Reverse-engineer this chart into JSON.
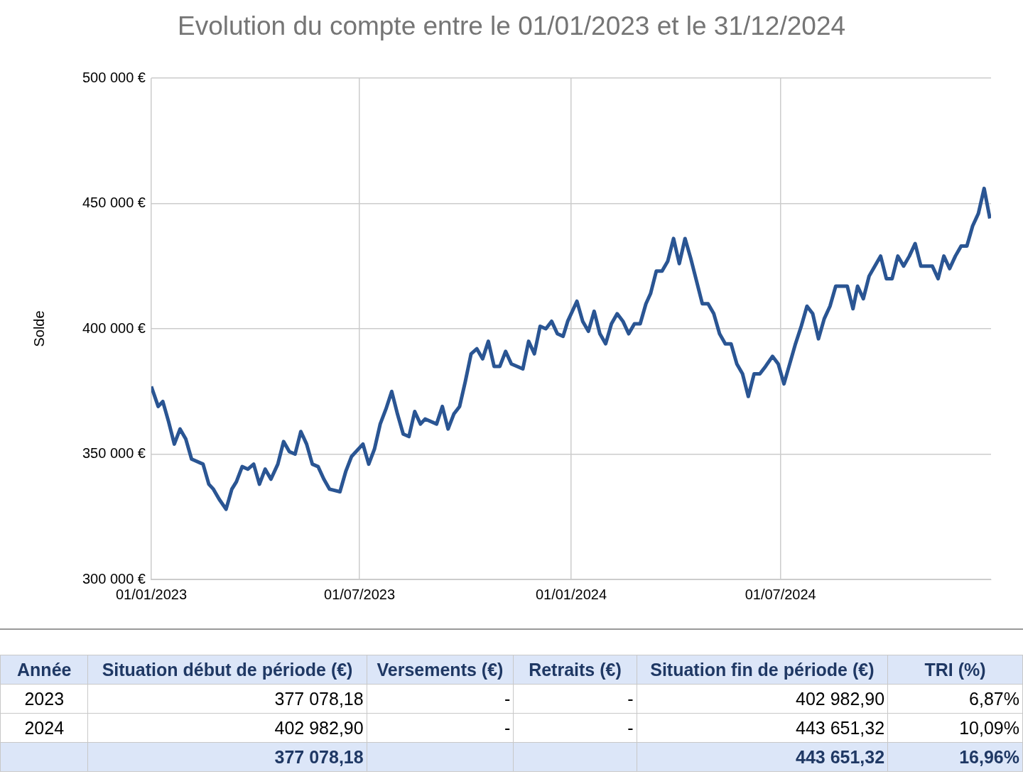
{
  "chart_data": {
    "type": "line",
    "title": "Evolution du compte entre le 01/01/2023 et le 31/12/2024",
    "ylabel": "Solde",
    "x": [
      "2023-01-01",
      "2023-01-07",
      "2023-01-11",
      "2023-01-16",
      "2023-01-21",
      "2023-01-26",
      "2023-01-31",
      "2023-02-05",
      "2023-02-15",
      "2023-02-20",
      "2023-02-24",
      "2023-03-01",
      "2023-03-07",
      "2023-03-12",
      "2023-03-16",
      "2023-03-21",
      "2023-03-26",
      "2023-03-31",
      "2023-04-05",
      "2023-04-10",
      "2023-04-15",
      "2023-04-21",
      "2023-04-26",
      "2023-05-01",
      "2023-05-06",
      "2023-05-11",
      "2023-05-16",
      "2023-05-21",
      "2023-05-26",
      "2023-05-31",
      "2023-06-05",
      "2023-06-14",
      "2023-06-19",
      "2023-06-24",
      "2023-07-04",
      "2023-07-09",
      "2023-07-14",
      "2023-07-19",
      "2023-07-24",
      "2023-07-29",
      "2023-08-03",
      "2023-08-08",
      "2023-08-13",
      "2023-08-18",
      "2023-08-23",
      "2023-08-27",
      "2023-09-06",
      "2023-09-11",
      "2023-09-16",
      "2023-09-21",
      "2023-09-26",
      "2023-10-01",
      "2023-10-06",
      "2023-10-11",
      "2023-10-16",
      "2023-10-21",
      "2023-10-26",
      "2023-10-31",
      "2023-11-05",
      "2023-11-10",
      "2023-11-20",
      "2023-11-25",
      "2023-11-30",
      "2023-12-05",
      "2023-12-10",
      "2023-12-15",
      "2023-12-20",
      "2023-12-25",
      "2023-12-29",
      "2024-01-06",
      "2024-01-11",
      "2024-01-16",
      "2024-01-21",
      "2024-01-26",
      "2024-01-31",
      "2024-02-05",
      "2024-02-10",
      "2024-02-15",
      "2024-02-20",
      "2024-02-25",
      "2024-03-01",
      "2024-03-06",
      "2024-03-10",
      "2024-03-15",
      "2024-03-20",
      "2024-03-25",
      "2024-03-30",
      "2024-04-04",
      "2024-04-09",
      "2024-04-14",
      "2024-04-19",
      "2024-04-24",
      "2024-04-29",
      "2024-05-04",
      "2024-05-09",
      "2024-05-14",
      "2024-05-19",
      "2024-05-24",
      "2024-05-29",
      "2024-06-03",
      "2024-06-08",
      "2024-06-13",
      "2024-06-18",
      "2024-06-24",
      "2024-06-29",
      "2024-07-04",
      "2024-07-09",
      "2024-07-14",
      "2024-07-19",
      "2024-07-24",
      "2024-07-29",
      "2024-08-03",
      "2024-08-08",
      "2024-08-13",
      "2024-08-18",
      "2024-08-23",
      "2024-08-28",
      "2024-09-02",
      "2024-09-06",
      "2024-09-11",
      "2024-09-16",
      "2024-09-21",
      "2024-09-26",
      "2024-10-01",
      "2024-10-06",
      "2024-10-11",
      "2024-10-16",
      "2024-10-21",
      "2024-10-26",
      "2024-10-31",
      "2024-11-05",
      "2024-11-10",
      "2024-11-15",
      "2024-11-20",
      "2024-11-25",
      "2024-11-30",
      "2024-12-05",
      "2024-12-10",
      "2024-12-15",
      "2024-12-20",
      "2024-12-25",
      "2024-12-30"
    ],
    "series": [
      {
        "color": "#2a5593",
        "values": [
          377000,
          369000,
          371000,
          363000,
          354000,
          360000,
          356000,
          348000,
          346000,
          338000,
          336000,
          332000,
          328000,
          336000,
          339000,
          345000,
          344000,
          346000,
          338000,
          344000,
          340000,
          346000,
          355000,
          351000,
          350000,
          359000,
          354000,
          346000,
          345000,
          340000,
          336000,
          335000,
          343000,
          349000,
          354000,
          346000,
          352000,
          362000,
          368000,
          375000,
          366000,
          358000,
          357000,
          367000,
          362000,
          364000,
          362000,
          369000,
          360000,
          366000,
          369000,
          379000,
          390000,
          392000,
          388000,
          395000,
          385000,
          385000,
          391000,
          386000,
          384000,
          395000,
          390000,
          401000,
          400000,
          403000,
          398000,
          397000,
          403000,
          411000,
          403000,
          399000,
          407000,
          398000,
          394000,
          402000,
          406000,
          403000,
          398000,
          402000,
          402000,
          410000,
          414000,
          423000,
          423000,
          427000,
          436000,
          426000,
          436000,
          428000,
          419000,
          410000,
          410000,
          406000,
          398000,
          394000,
          394000,
          386000,
          382000,
          373000,
          382000,
          382000,
          385000,
          389000,
          386000,
          378000,
          386000,
          394000,
          401000,
          409000,
          406000,
          396000,
          404000,
          409000,
          417000,
          417000,
          417000,
          408000,
          417000,
          412000,
          421000,
          425000,
          429000,
          420000,
          420000,
          429000,
          425000,
          429000,
          434000,
          425000,
          425000,
          425000,
          420000,
          429000,
          424000,
          429000,
          433000,
          433000,
          441000,
          446000,
          456000,
          444000
        ]
      }
    ],
    "xlim": [
      "2023-01-01",
      "2024-12-31"
    ],
    "xticks": [
      {
        "value": "2023-01-01",
        "label": "01/01/2023"
      },
      {
        "value": "2023-07-01",
        "label": "01/07/2023"
      },
      {
        "value": "2024-01-01",
        "label": "01/01/2024"
      },
      {
        "value": "2024-07-01",
        "label": "01/07/2024"
      }
    ],
    "ylim": [
      300000,
      500000
    ],
    "yticks": [
      {
        "value": 300000,
        "label": "300 000 €"
      },
      {
        "value": 350000,
        "label": "350 000 €"
      },
      {
        "value": 400000,
        "label": "400 000 €"
      },
      {
        "value": 450000,
        "label": "450 000 €"
      },
      {
        "value": 500000,
        "label": "500 000 €"
      }
    ],
    "grid": true,
    "legend": false,
    "marker": "none",
    "line_style": "solid",
    "annotations": [
      "Année",
      "Situation début de période (€)",
      "Versements (€)",
      "Retraits (€)",
      "Situation fin de période (€)",
      "TRI (%)",
      "2023",
      "377 078,18",
      "-",
      "-",
      "402 982,90",
      "6,87%",
      "2024",
      "402 982,90",
      "-",
      "-",
      "443 651,32",
      "10,09%",
      null,
      "377 078,18",
      null,
      null,
      "443 651,32",
      "16,96%"
    ]
  }
}
